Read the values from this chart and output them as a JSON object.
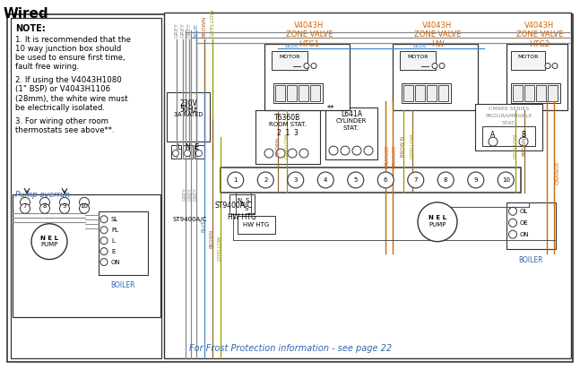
{
  "title": "Wired",
  "bg_color": "#ffffff",
  "footer_text": "For Frost Protection information - see page 22",
  "note_lines": [
    "NOTE:",
    "1. It is recommended that the",
    "10 way junction box should",
    "be used to ensure first time,",
    "fault free wiring.",
    " ",
    "2. If using the V4043H1080",
    "(1\" BSP) or V4043H1106",
    "(28mm), the white wire must",
    "be electrically isolated.",
    " ",
    "3. For wiring other room",
    "thermostats see above**."
  ],
  "colors": {
    "grey": "#888888",
    "blue": "#4488cc",
    "brown": "#996633",
    "gyellow": "#999900",
    "orange": "#cc6600",
    "black": "#111111",
    "dkgrey": "#555555",
    "ltgrey": "#aaaaaa",
    "note_blue": "#3366aa"
  }
}
